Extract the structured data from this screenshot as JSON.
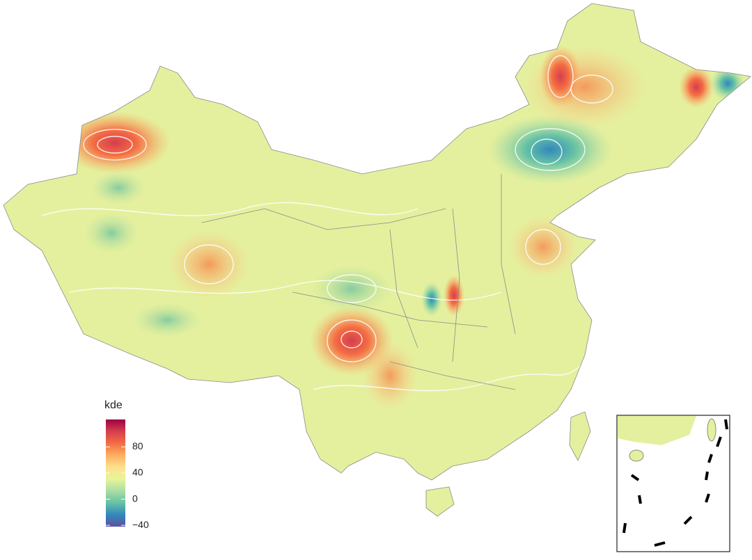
{
  "chart_data": {
    "type": "colorbar",
    "legend_title": "kde",
    "ylim": [
      -42,
      122
    ],
    "yticks": [
      {
        "value": -40,
        "label": "−40"
      },
      0,
      40,
      80
    ],
    "colorscale": [
      "#5e4fa2",
      "#3288bd",
      "#66c2a5",
      "#abdda4",
      "#e6f598",
      "#fee08b",
      "#fdae61",
      "#f46d43",
      "#d53e4f",
      "#9e0142"
    ]
  }
}
